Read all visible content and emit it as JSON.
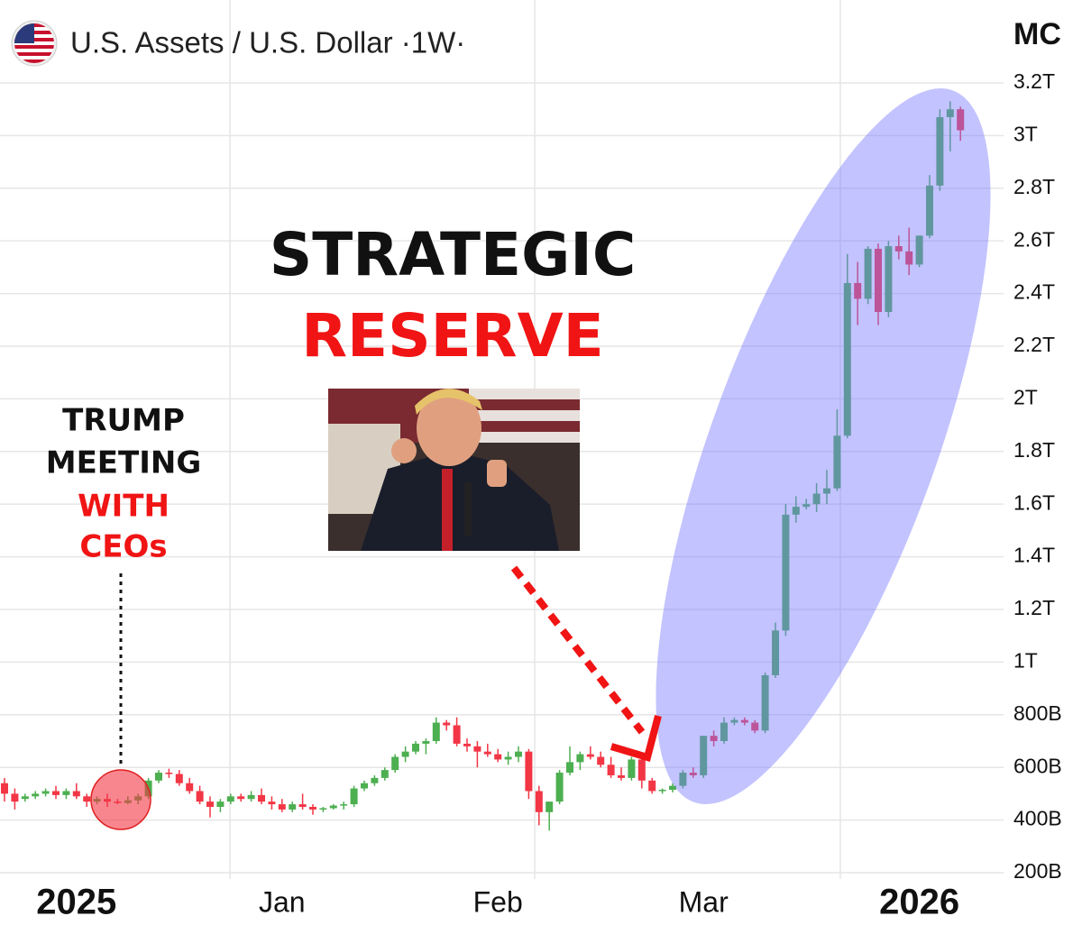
{
  "chart_data": {
    "type": "candlestick",
    "title": "U.S. Assets / U.S. Dollar ·1W·",
    "y_label": "MC",
    "annotations": [
      "TRUMP",
      "MEETING",
      "WITH",
      "CEOs",
      "STRATEGIC",
      "RESERVE"
    ],
    "up_color": "#4caf50",
    "down_color": "#f23645",
    "categories": [
      null,
      null,
      null,
      null,
      null,
      null,
      null,
      "2025",
      null,
      null,
      null,
      null,
      null,
      null,
      null,
      null,
      null,
      null,
      null,
      null,
      null,
      null,
      null,
      null,
      null,
      null,
      null,
      "Jan",
      null,
      null,
      null,
      null,
      null,
      null,
      null,
      null,
      null,
      null,
      null,
      null,
      null,
      null,
      null,
      null,
      null,
      null,
      null,
      null,
      "Feb",
      null,
      null,
      null,
      null,
      null,
      null,
      null,
      null,
      null,
      null,
      null,
      null,
      null,
      null,
      null,
      null,
      null,
      null,
      null,
      "Mar",
      null,
      null,
      null,
      null,
      null,
      null,
      null,
      null,
      null,
      null,
      null,
      null,
      null,
      null,
      null,
      null,
      null,
      null,
      null,
      null,
      "2026",
      null,
      null,
      null,
      null
    ],
    "open": [
      540,
      500,
      480,
      490,
      500,
      510,
      495,
      510,
      490,
      470,
      480,
      470,
      465,
      475,
      490,
      550,
      580,
      575,
      540,
      510,
      470,
      450,
      470,
      490,
      480,
      495,
      470,
      460,
      440,
      460,
      450,
      440,
      445,
      455,
      460,
      520,
      540,
      560,
      590,
      640,
      660,
      690,
      700,
      770,
      760,
      690,
      680,
      660,
      650,
      630,
      640,
      660,
      510,
      430,
      470,
      580,
      620,
      650,
      640,
      610,
      570,
      560,
      630,
      550,
      510,
      515,
      530,
      580,
      570,
      720,
      700,
      770,
      780,
      770,
      740,
      950,
      1120,
      1560,
      1590,
      1600,
      1640,
      1660,
      1860,
      2440,
      2380,
      2570,
      2330,
      2580,
      2560,
      2510,
      2620,
      2810,
      3070,
      3100
    ],
    "high": [
      560,
      520,
      500,
      510,
      520,
      530,
      520,
      540,
      500,
      490,
      500,
      480,
      490,
      500,
      560,
      590,
      595,
      590,
      560,
      530,
      490,
      480,
      500,
      500,
      510,
      520,
      490,
      480,
      470,
      500,
      460,
      450,
      460,
      470,
      530,
      550,
      570,
      600,
      650,
      680,
      700,
      710,
      790,
      780,
      790,
      710,
      700,
      690,
      670,
      660,
      680,
      670,
      530,
      470,
      590,
      680,
      660,
      680,
      660,
      640,
      600,
      640,
      640,
      560,
      520,
      540,
      590,
      600,
      720,
      740,
      790,
      790,
      790,
      780,
      960,
      1150,
      1600,
      1630,
      1620,
      1680,
      1730,
      1960,
      2550,
      2520,
      2580,
      2590,
      2600,
      2620,
      2650,
      2620,
      2850,
      3100,
      3130,
      3110
    ],
    "low": [
      470,
      440,
      470,
      480,
      490,
      480,
      480,
      480,
      450,
      460,
      450,
      460,
      460,
      460,
      480,
      540,
      560,
      530,
      500,
      460,
      410,
      430,
      460,
      470,
      470,
      460,
      440,
      430,
      430,
      440,
      420,
      430,
      440,
      440,
      450,
      510,
      530,
      550,
      580,
      620,
      650,
      650,
      690,
      740,
      680,
      660,
      600,
      640,
      620,
      610,
      620,
      480,
      380,
      360,
      460,
      570,
      590,
      630,
      600,
      560,
      550,
      550,
      520,
      500,
      500,
      505,
      520,
      560,
      560,
      680,
      690,
      760,
      760,
      730,
      730,
      940,
      1100,
      1530,
      1580,
      1570,
      1600,
      1650,
      1850,
      2280,
      2360,
      2280,
      2310,
      2530,
      2470,
      2500,
      2610,
      2790,
      2940,
      2980
    ],
    "close": [
      500,
      470,
      490,
      500,
      510,
      495,
      510,
      490,
      470,
      480,
      470,
      465,
      475,
      490,
      550,
      580,
      575,
      540,
      510,
      470,
      450,
      470,
      490,
      480,
      495,
      470,
      460,
      440,
      460,
      450,
      440,
      445,
      455,
      460,
      520,
      540,
      560,
      590,
      640,
      660,
      690,
      700,
      770,
      760,
      690,
      680,
      660,
      650,
      630,
      640,
      660,
      510,
      430,
      470,
      580,
      620,
      650,
      640,
      610,
      570,
      560,
      630,
      550,
      510,
      515,
      530,
      580,
      570,
      720,
      700,
      770,
      780,
      770,
      740,
      950,
      1120,
      1560,
      1590,
      1600,
      1640,
      1660,
      1860,
      2440,
      2380,
      2570,
      2330,
      2580,
      2560,
      2510,
      2620,
      2810,
      3070,
      3100,
      3020
    ],
    "ylim": [
      176,
      3515
    ],
    "yticks": [
      {
        "value": 200,
        "label": "200B"
      },
      {
        "value": 400,
        "label": "400B"
      },
      {
        "value": 600,
        "label": "600B"
      },
      {
        "value": 800,
        "label": "800B"
      },
      {
        "value": 1000,
        "label": "1T"
      },
      {
        "value": 1200,
        "label": "1.2T"
      },
      {
        "value": 1400,
        "label": "1.4T"
      },
      {
        "value": 1600,
        "label": "1.6T"
      },
      {
        "value": 1800,
        "label": "1.8T"
      },
      {
        "value": 2000,
        "label": "2T"
      },
      {
        "value": 2200,
        "label": "2.2T"
      },
      {
        "value": 2400,
        "label": "2.4T"
      },
      {
        "value": 2600,
        "label": "2.6T"
      },
      {
        "value": 2800,
        "label": "2.8T"
      },
      {
        "value": 3000,
        "label": "3T"
      },
      {
        "value": 3200,
        "label": "3.2T"
      }
    ],
    "grid": true
  }
}
